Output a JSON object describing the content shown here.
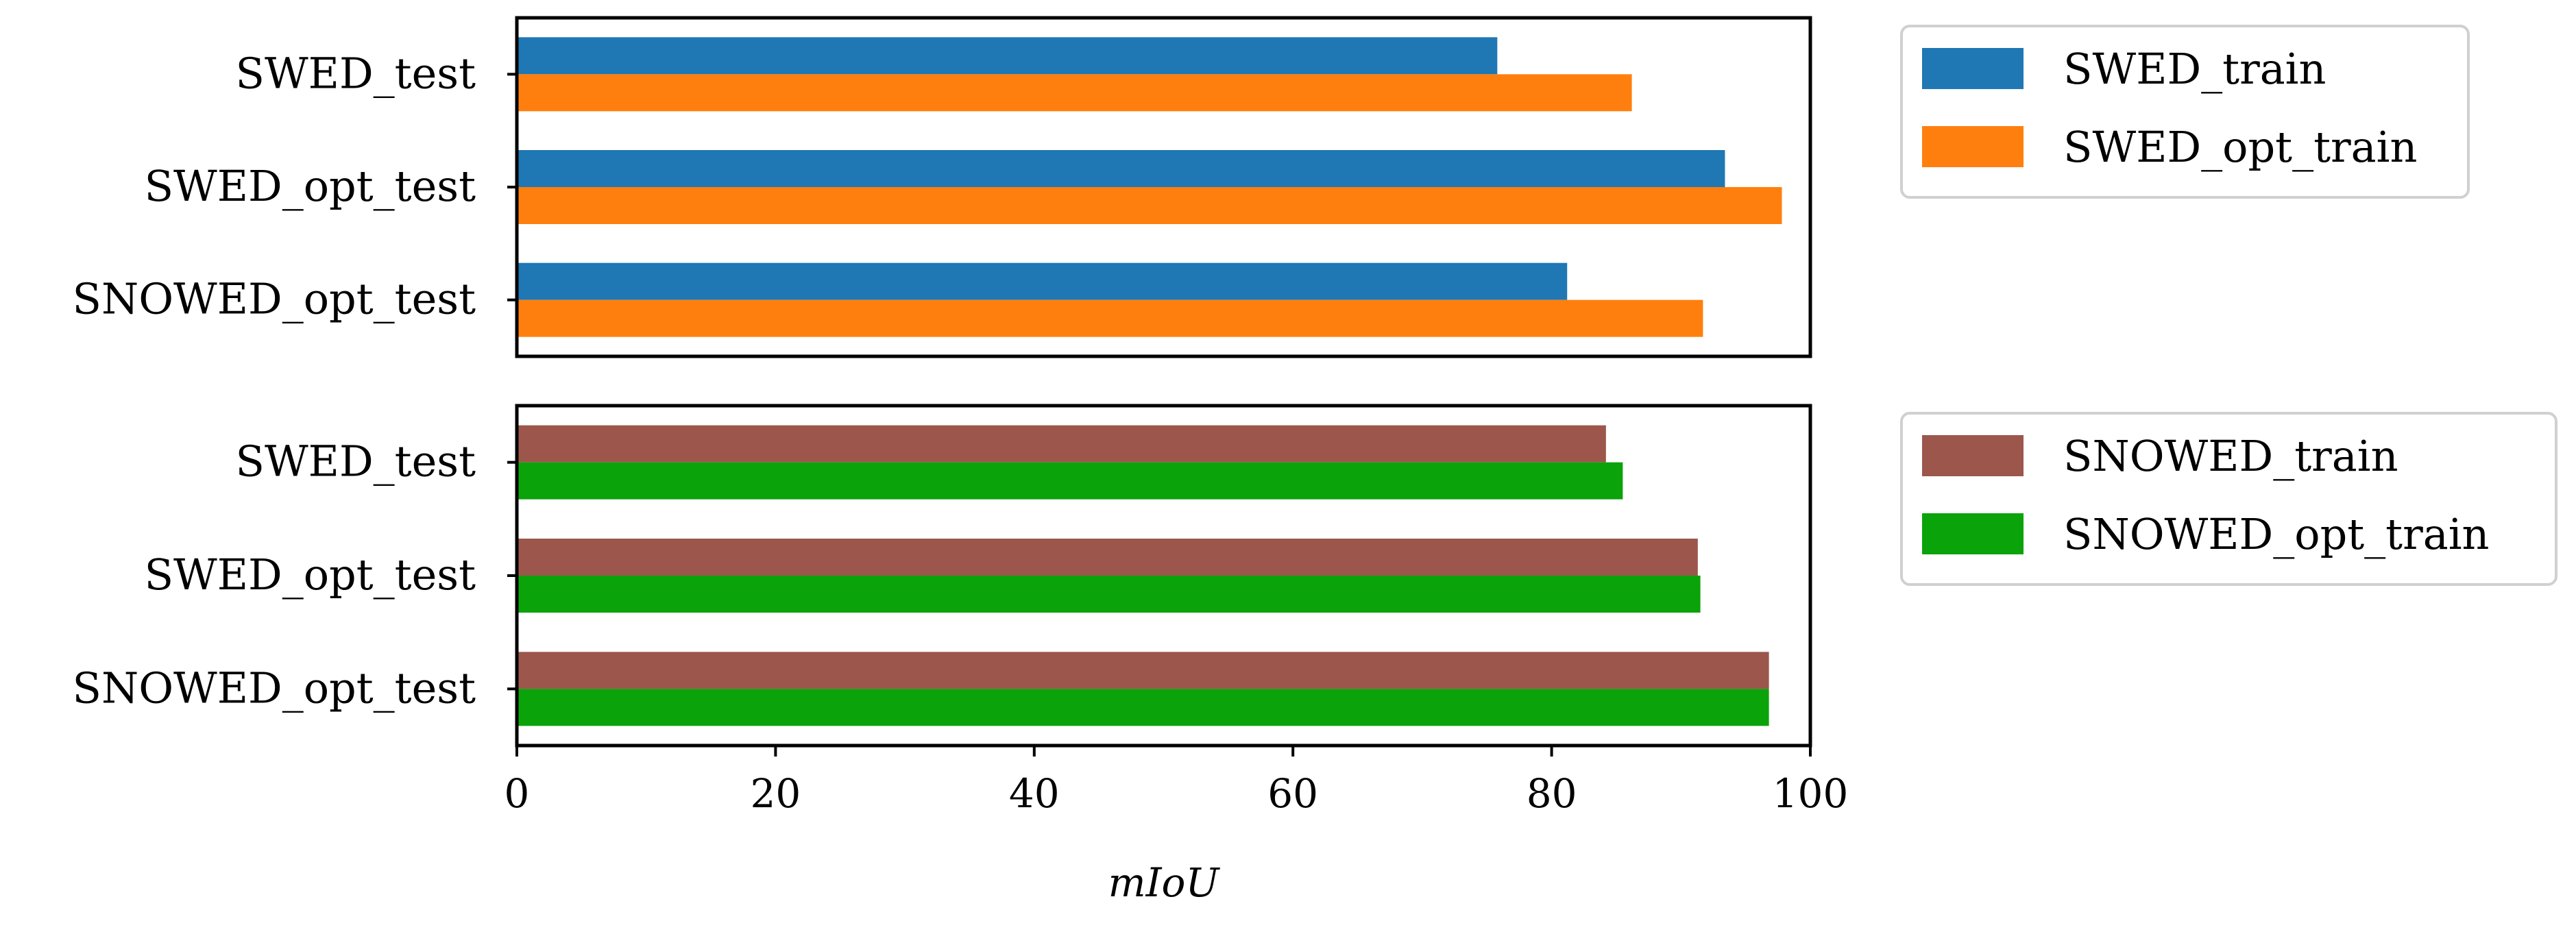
{
  "chart_data": [
    {
      "type": "bar",
      "orientation": "horizontal",
      "title": "",
      "categories": [
        "SWED_test",
        "SWED_opt_test",
        "SNOWED_opt_test"
      ],
      "series": [
        {
          "name": "SWED_train",
          "color": "#1f77b4",
          "values": [
            75.8,
            93.4,
            81.2
          ]
        },
        {
          "name": "SWED_opt_train",
          "color": "#ff7f0e",
          "values": [
            86.2,
            97.8,
            91.7
          ]
        }
      ],
      "xlim": [
        0,
        100
      ],
      "legend_position": "outside-top-right",
      "grid": false
    },
    {
      "type": "bar",
      "orientation": "horizontal",
      "title": "",
      "categories": [
        "SWED_test",
        "SWED_opt_test",
        "SNOWED_opt_test"
      ],
      "series": [
        {
          "name": "SNOWED_train",
          "color": "#9c564b",
          "values": [
            84.2,
            91.3,
            96.8
          ]
        },
        {
          "name": "SNOWED_opt_train",
          "color": "#0aa30a",
          "values": [
            85.5,
            91.5,
            96.8
          ]
        }
      ],
      "xlim": [
        0,
        100
      ],
      "xticks": [
        0,
        20,
        40,
        60,
        80,
        100
      ],
      "xlabel": "mIoU",
      "legend_position": "outside-top-right",
      "grid": false
    }
  ]
}
